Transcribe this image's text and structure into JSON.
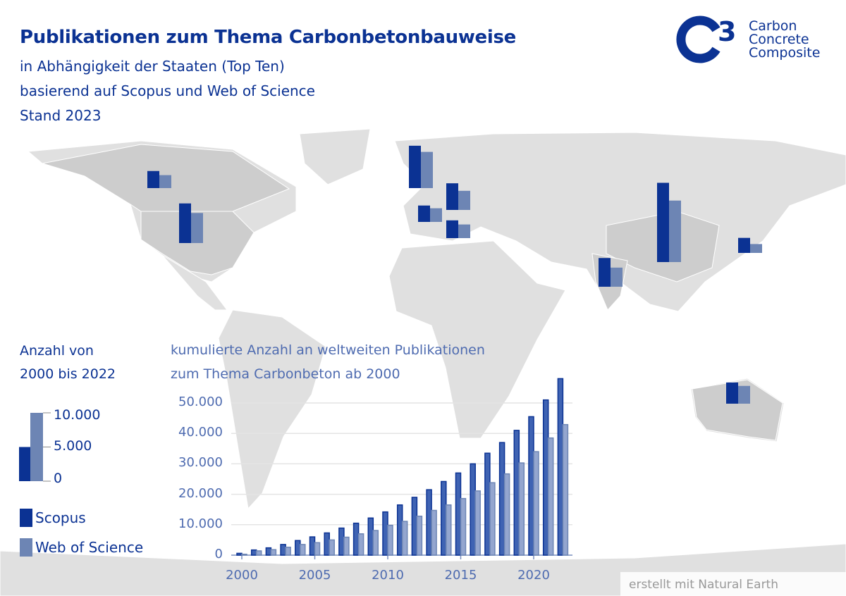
{
  "header": {
    "title": "Publikationen zum Thema Carbonbetonbauweise",
    "subtitle_lines": [
      "in Abhängigkeit der Staaten (Top Ten)",
      "basierend auf Scopus und Web of Science",
      "Stand 2023"
    ]
  },
  "logo": {
    "mark": "C3",
    "lines": [
      "Carbon",
      "Concrete",
      "Composite"
    ]
  },
  "colors": {
    "scopus": "#0b3293",
    "wos": "#6d85b4",
    "land": "#e0e0e0",
    "land_highlight": "#cdcdcd"
  },
  "map_legend": {
    "heading": [
      "Anzahl von",
      "2000 bis 2022"
    ],
    "scale_ticks": [
      "10.000",
      "5.000",
      "0"
    ],
    "scale_values": [
      10000,
      5000,
      0
    ],
    "example_scopus": 5000,
    "example_wos": 10000
  },
  "legend": {
    "scopus": "Scopus",
    "wos": "Web of Science"
  },
  "map_bars": [
    {
      "scopus": 2500,
      "wos": 1900
    },
    {
      "scopus": 5800,
      "wos": 4400
    },
    {
      "scopus": 6200,
      "wos": 5300
    },
    {
      "scopus": 2400,
      "wos": 2000
    },
    {
      "scopus": 3900,
      "wos": 2800
    },
    {
      "scopus": 2600,
      "wos": 2000
    },
    {
      "scopus": 11600,
      "wos": 9000
    },
    {
      "scopus": 4200,
      "wos": 2800
    },
    {
      "scopus": 2200,
      "wos": 1300
    },
    {
      "scopus": 3100,
      "wos": 2600
    }
  ],
  "chart_data": {
    "type": "bar",
    "title": "kumulierte Anzahl an weltweiten Publikationen zum Thema Carbonbeton ab 2000",
    "title_lines": [
      "kumulierte Anzahl an weltweiten Publikationen",
      "zum Thema Carbonbeton ab 2000"
    ],
    "categories": [
      2000,
      2001,
      2002,
      2003,
      2004,
      2005,
      2006,
      2007,
      2008,
      2009,
      2010,
      2011,
      2012,
      2013,
      2014,
      2015,
      2016,
      2017,
      2018,
      2019,
      2020,
      2021,
      2022
    ],
    "series": [
      {
        "name": "Scopus",
        "values": [
          600,
          1700,
          2400,
          3500,
          4800,
          6000,
          7300,
          8900,
          10500,
          12200,
          14200,
          16500,
          19000,
          21500,
          24200,
          27000,
          30000,
          33500,
          37000,
          41000,
          45500,
          51000,
          58000
        ]
      },
      {
        "name": "Web of Science",
        "values": [
          300,
          1400,
          1800,
          2600,
          3500,
          4100,
          5000,
          5900,
          7000,
          8100,
          9800,
          11100,
          12800,
          14700,
          16500,
          18600,
          21100,
          23800,
          26700,
          30300,
          34000,
          38500,
          42900
        ]
      }
    ],
    "y_ticks": [
      0,
      10000,
      20000,
      30000,
      40000,
      50000
    ],
    "y_tick_labels": [
      "0",
      "10.000",
      "20.000",
      "30.000",
      "40.000",
      "50.000"
    ],
    "x_ticks": [
      2000,
      2005,
      2010,
      2015,
      2020
    ],
    "x_tick_labels": [
      "2000",
      "2005",
      "2010",
      "2015",
      "2020"
    ],
    "ylim": [
      0,
      58000
    ],
    "grid": true,
    "legend": "left"
  },
  "footer": {
    "credit": "erstellt mit Natural Earth"
  }
}
